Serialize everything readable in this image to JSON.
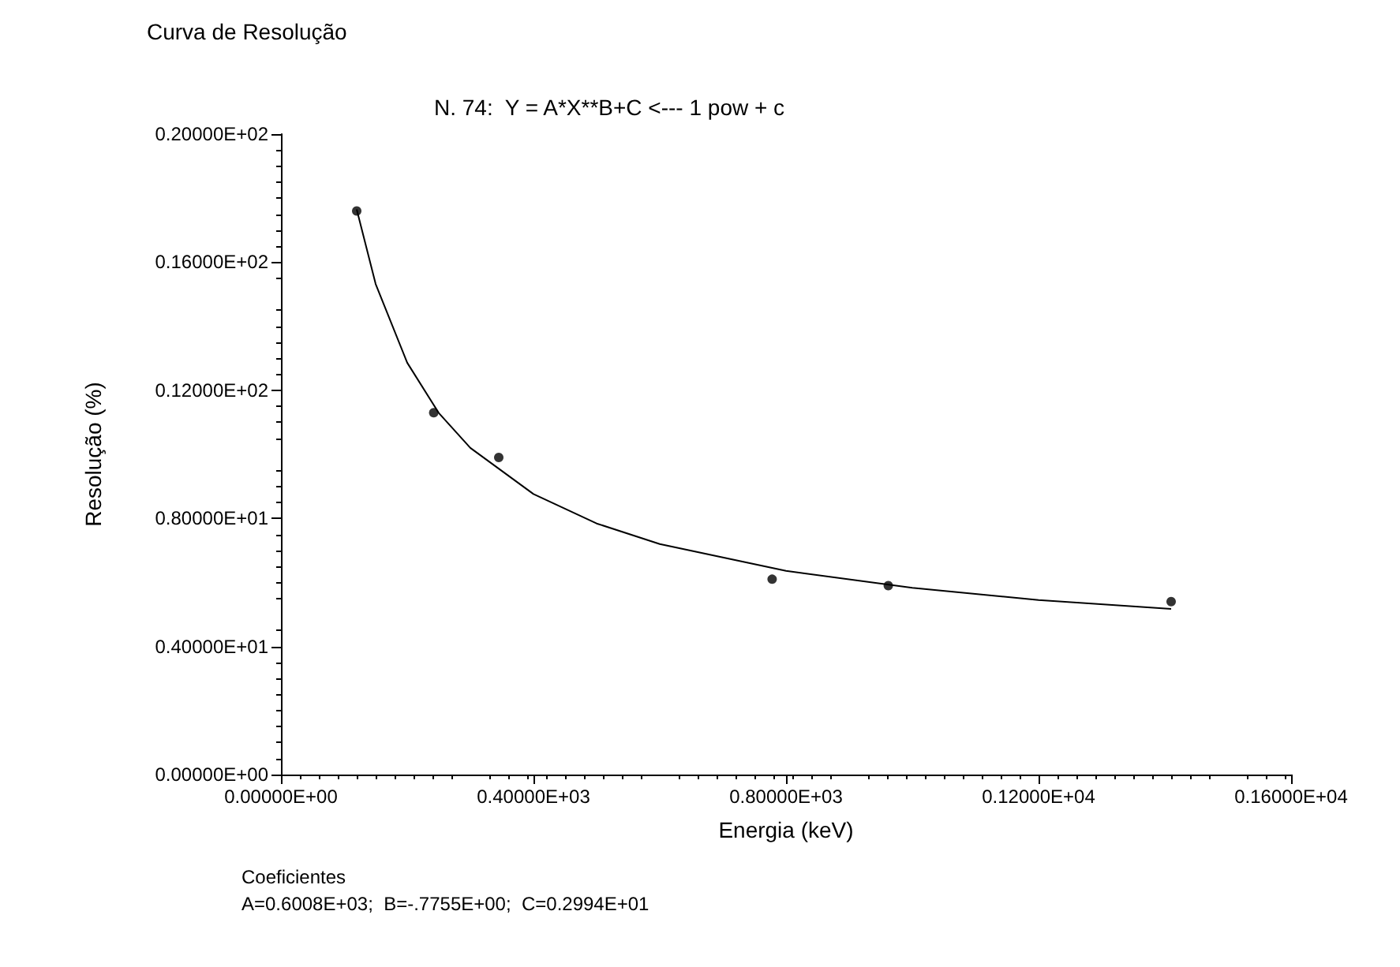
{
  "chart_data": {
    "type": "scatter",
    "title": "Curva de Resolução",
    "subtitle": "N. 74:  Y = A*X**B+C <--- 1 pow + c",
    "xlabel": "Energia (keV)",
    "ylabel": "Resolução (%)",
    "annotations": [
      "Coeficientes",
      "A=0.6008E+03;  B=-.7755E+00;  C=0.2994E+01"
    ],
    "series": [
      {
        "color": "#000000",
        "marker": "circle",
        "x": [
          120,
          242,
          345,
          778,
          962,
          1410
        ],
        "values": [
          17.6,
          11.3,
          9.9,
          6.1,
          5.9,
          5.4
        ]
      },
      {
        "type": "line",
        "color": "#000000",
        "marker": "none",
        "x": [
          120,
          150,
          200,
          250,
          300,
          400,
          500,
          600,
          800,
          1000,
          1200,
          1410
        ],
        "values": [
          17.65,
          15.32,
          12.86,
          11.29,
          10.2,
          8.76,
          7.84,
          7.2,
          6.36,
          5.83,
          5.45,
          5.17
        ]
      }
    ],
    "xlim": [
      0,
      1600
    ],
    "xticks": [
      {
        "value": 0,
        "label": "0.00000E+00"
      },
      {
        "value": 400,
        "label": "0.40000E+03"
      },
      {
        "value": 800,
        "label": "0.80000E+03"
      },
      {
        "value": 1200,
        "label": "0.12000E+04"
      },
      {
        "value": 1600,
        "label": "0.16000E+04"
      }
    ],
    "ylim": [
      0,
      20
    ],
    "yticks": [
      {
        "value": 0,
        "label": "0.00000E+00"
      },
      {
        "value": 4,
        "label": "0.40000E+01"
      },
      {
        "value": 8,
        "label": "0.80000E+01"
      },
      {
        "value": 12,
        "label": "0.12000E+02"
      },
      {
        "value": 16,
        "label": "0.16000E+02"
      },
      {
        "value": 20,
        "label": "0.20000E+02"
      }
    ],
    "grid": false
  }
}
